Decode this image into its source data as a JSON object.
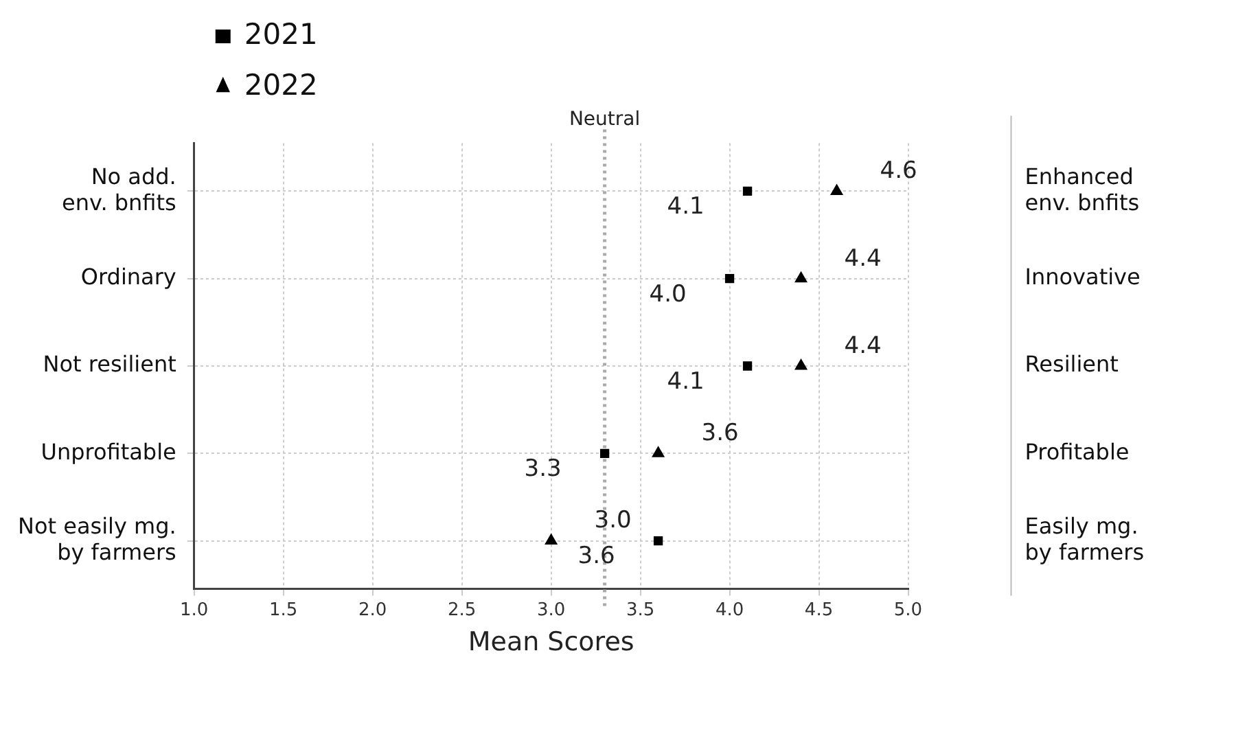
{
  "chart_data": {
    "type": "scatter",
    "orientation": "horizontal",
    "xlabel": "Mean Scores",
    "categories": [
      "No add. env. bnfits",
      "Ordinary",
      "Not resilient",
      "Unprofitable",
      "Not easily mg. by farmers"
    ],
    "y2_categories": [
      "Enhanced env. bnfits",
      "Innovative",
      "Resilient",
      "Profitable",
      "Easily mg. by farmers"
    ],
    "series": [
      {
        "name": "2021",
        "color": "#000000",
        "marker": "square",
        "values": [
          4.1,
          4.0,
          4.1,
          3.3,
          3.6
        ],
        "value_labels": [
          "4.1",
          "4.0",
          "4.1",
          "3.3",
          "3.6"
        ]
      },
      {
        "name": "2022",
        "color": "#000000",
        "marker": "triangle",
        "values": [
          4.6,
          4.4,
          4.4,
          3.6,
          3.0
        ],
        "value_labels": [
          "4.6",
          "4.4",
          "4.4",
          "3.6",
          "3.0"
        ]
      }
    ],
    "xlim": [
      1,
      5
    ],
    "xticks": [
      {
        "value": 1,
        "label": "1.0"
      },
      {
        "value": 1.5,
        "label": "1.5"
      },
      {
        "value": 2,
        "label": "2.0"
      },
      {
        "value": 2.5,
        "label": "2.5"
      },
      {
        "value": 3,
        "label": "3.0"
      },
      {
        "value": 3.5,
        "label": "3.5"
      },
      {
        "value": 4,
        "label": "4.0"
      },
      {
        "value": 4.5,
        "label": "4.5"
      },
      {
        "value": 5,
        "label": "5.0"
      }
    ],
    "ref_lines": [
      {
        "axis": "x",
        "value": 3.3,
        "label": "Neutral",
        "color": "#aaaaaa",
        "line_style": "dotted"
      }
    ],
    "grid": true,
    "legend": "top left"
  }
}
